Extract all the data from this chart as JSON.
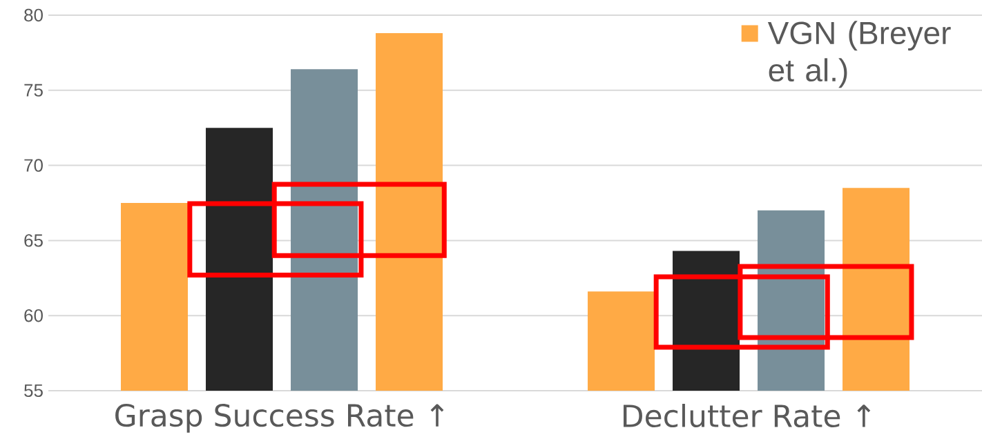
{
  "chart_data": {
    "type": "bar",
    "categories": [
      "Grasp Success Rate ↑",
      "Declutter Rate ↑"
    ],
    "series": [
      {
        "name": "VGN (Breyer et al.)",
        "color": "#ffaa45",
        "values": [
          67.5,
          61.6
        ]
      },
      {
        "color": "#262626",
        "values": [
          72.5,
          64.3
        ]
      },
      {
        "color": "#788f9a",
        "values": [
          76.4,
          67.0
        ]
      },
      {
        "color": "#ffaa45",
        "values": [
          78.8,
          68.5
        ]
      }
    ],
    "ylim": [
      55,
      80
    ],
    "yticks": [
      55,
      60,
      65,
      70,
      75,
      80
    ],
    "grid": "y",
    "legend": "top right"
  }
}
